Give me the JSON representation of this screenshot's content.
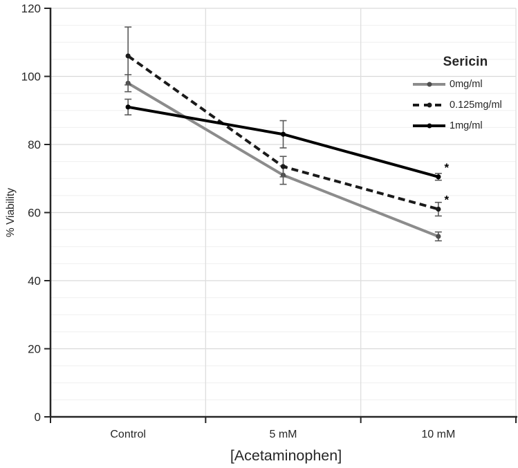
{
  "figure": {
    "background": "#ffffff"
  },
  "chart_data": {
    "type": "line",
    "title": "",
    "xlabel": "[Acetaminophen]",
    "ylabel": "% Viability",
    "categories": [
      "Control",
      "5 mM",
      "10 mM"
    ],
    "ylim": [
      0,
      120
    ],
    "ytick_interval": 20,
    "minor_ytick_interval": 5,
    "yticks": [
      0,
      20,
      40,
      60,
      80,
      100,
      120
    ],
    "grid": {
      "major_color": "#d9d9d9",
      "minor_color": "#f2f2f2",
      "vertical_color": "#dedede",
      "major_on": true,
      "minor_on": true
    },
    "axis_color": "#262626",
    "text_color": "#262626",
    "error_bar_color": "#595959",
    "legend": {
      "title": "Sericin",
      "position": "upper-right"
    },
    "series": [
      {
        "name": "0mg/ml",
        "color": "#8c8c8c",
        "marker_color": "#4d4d4d",
        "style": "solid",
        "values": [
          98,
          71,
          53
        ],
        "errors": [
          2.5,
          2.7,
          1.3
        ],
        "significance": [
          "",
          "",
          ""
        ]
      },
      {
        "name": "0.125mg/ml",
        "color": "#1a1a1a",
        "marker_color": "#1a1a1a",
        "style": "dashed",
        "values": [
          106,
          73.5,
          61
        ],
        "errors": [
          8.5,
          3,
          2
        ],
        "significance": [
          "",
          "",
          "*"
        ]
      },
      {
        "name": "1mg/ml",
        "color": "#000000",
        "marker_color": "#000000",
        "style": "solid",
        "values": [
          91,
          83,
          70.5
        ],
        "errors": [
          2.3,
          4,
          1
        ],
        "significance": [
          "",
          "",
          "*"
        ]
      }
    ]
  }
}
